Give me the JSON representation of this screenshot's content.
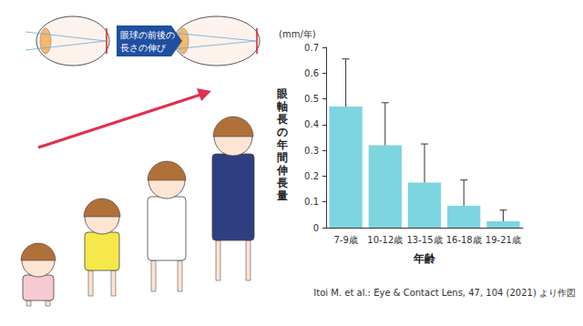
{
  "chart_data": {
    "type": "bar",
    "xlabel": "年齢",
    "ylabel": "眼軸長の年間伸長量",
    "categories": [
      "7-9歳",
      "10-12歳",
      "13-15歳",
      "16-18歳",
      "19-21歳"
    ],
    "values": [
      0.47,
      0.32,
      0.175,
      0.085,
      0.025
    ],
    "errors": [
      0.185,
      0.165,
      0.15,
      0.1,
      0.043
    ],
    "color": "#7dd5e0",
    "ylim": [
      0,
      0.7
    ],
    "yticks": [
      0,
      0.1,
      0.2,
      0.3,
      0.4,
      0.5,
      0.6,
      0.7
    ],
    "grid": false,
    "annotations": {
      "unit": "(mm/年)",
      "diagram": "眼球の前後の長さの伸び",
      "source": "Itoi M. et al.: Eye & Contact Lens, 47, 104 (2021) より作図"
    }
  }
}
